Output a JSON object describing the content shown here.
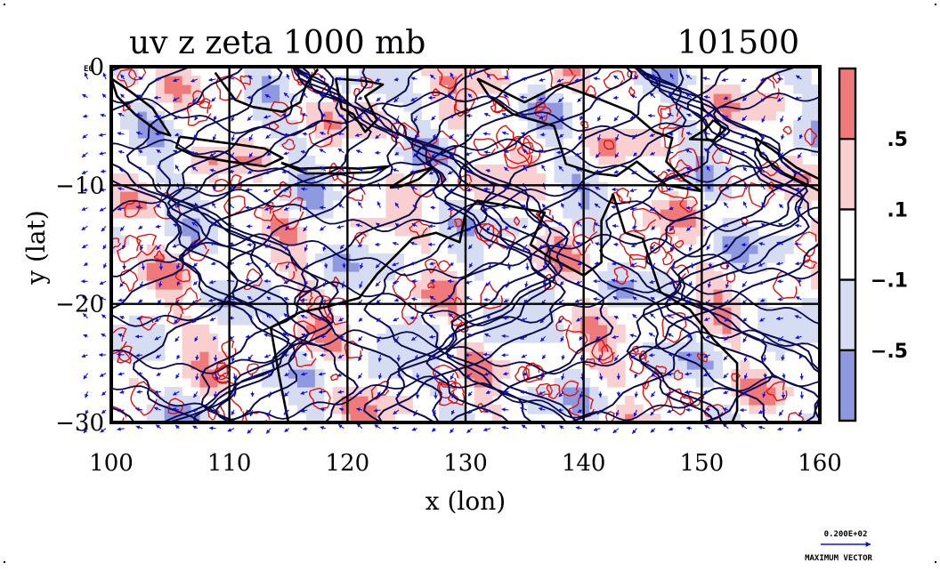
{
  "chart_data": {
    "type": "heatmap",
    "title": "uv z zeta 1000 mb",
    "subtitle": "101500",
    "xlabel": "x (lon)",
    "ylabel": "y (lat)",
    "xlim": [
      100,
      160
    ],
    "ylim": [
      -30,
      0
    ],
    "x_ticks": [
      "100",
      "110",
      "120",
      "130",
      "140",
      "150",
      "160"
    ],
    "y_ticks": [
      "0",
      "−10",
      "−20",
      "−30"
    ],
    "y_top_label_suffix": "E0",
    "grid": true,
    "colorbar": {
      "levels": [
        ".5",
        ".1",
        "−.1",
        "−.5"
      ],
      "colors": [
        "#f07a7a",
        "#f9cfcf",
        "#ffffff",
        "#d6dcf2",
        "#8e99e0"
      ]
    },
    "vector_key": {
      "value": "0.200E+02",
      "label": "MAXIMUM VECTOR"
    },
    "series": [
      {
        "layer": "vorticity_positive_contours",
        "color": "#e01010"
      },
      {
        "layer": "wind_vectors",
        "color": "#1010e0"
      },
      {
        "layer": "geopotential_height_contours",
        "color": "#0a0a50"
      },
      {
        "layer": "coastline",
        "color": "#000000"
      }
    ]
  }
}
